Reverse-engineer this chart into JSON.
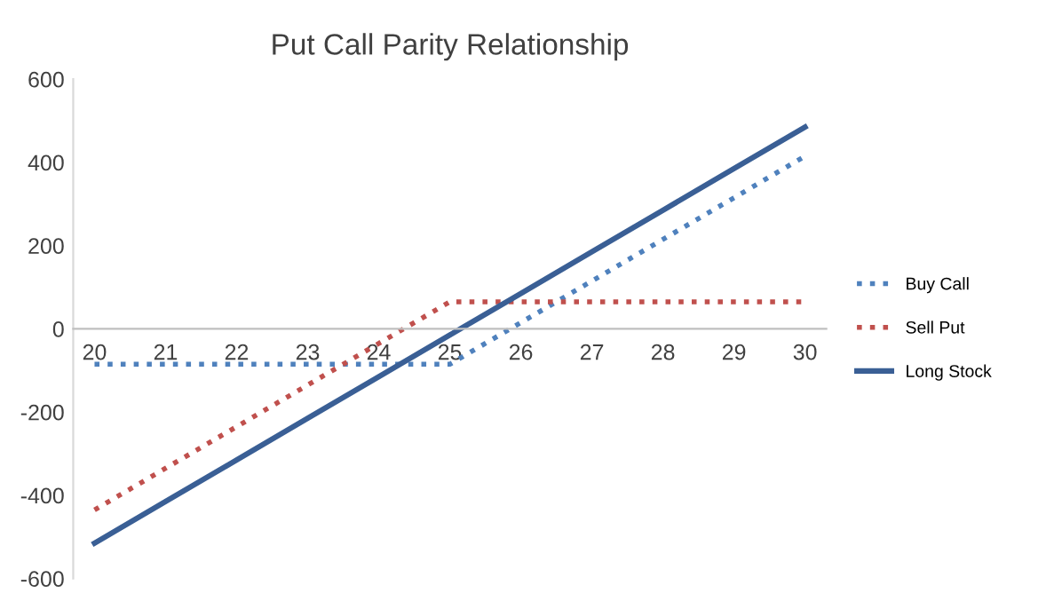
{
  "chart_data": {
    "type": "line",
    "title": "Put Call Parity Relationship",
    "categories": [
      "20",
      "21",
      "22",
      "23",
      "24",
      "25",
      "26",
      "27",
      "28",
      "29",
      "30"
    ],
    "series": [
      {
        "name": "Buy Call",
        "color": "#4f81bd",
        "line_style": "dotted",
        "values": [
          -85,
          -85,
          -85,
          -85,
          -85,
          -85,
          15,
          115,
          215,
          315,
          415
        ]
      },
      {
        "name": "Sell Put",
        "color": "#c0504d",
        "line_style": "dotted",
        "values": [
          -435,
          -335,
          -235,
          -135,
          -35,
          65,
          65,
          65,
          65,
          65,
          65
        ]
      },
      {
        "name": "Long Stock",
        "color": "#3a5f95",
        "line_style": "solid",
        "values": [
          -515,
          -415,
          -315,
          -215,
          -115,
          -15,
          85,
          185,
          285,
          385,
          485
        ]
      }
    ],
    "ylim": [
      -600,
      600
    ],
    "yticks": [
      -600,
      -400,
      -200,
      0,
      200,
      400,
      600
    ],
    "grid": false,
    "legend": "right",
    "marker": "none"
  }
}
